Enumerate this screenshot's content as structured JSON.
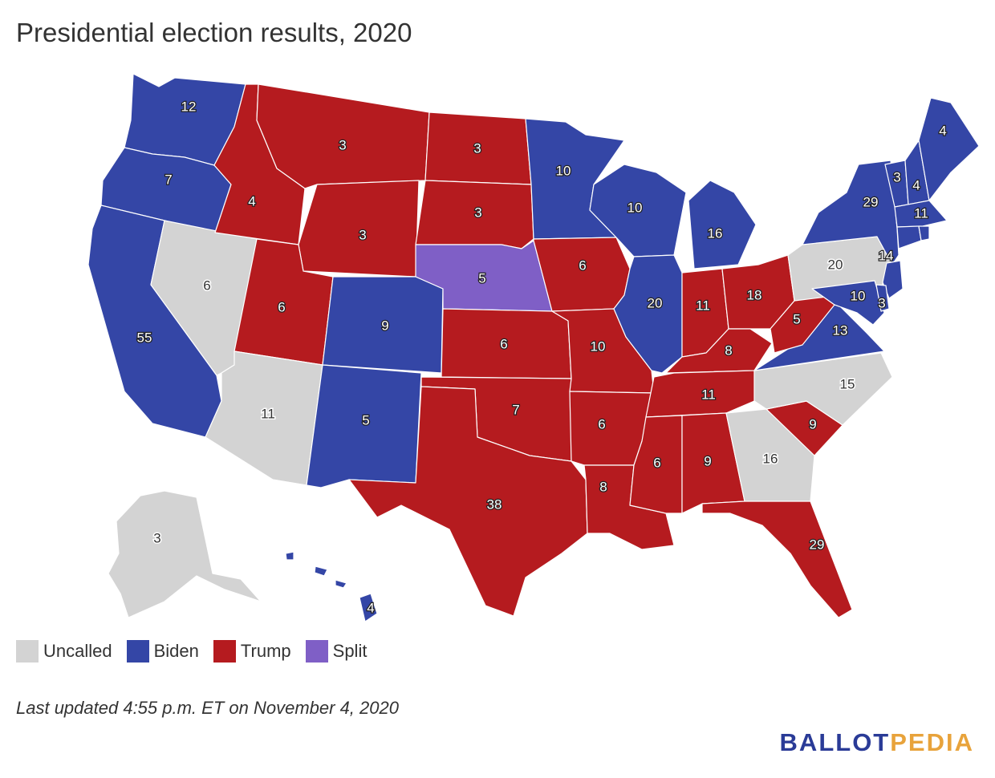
{
  "title": "Presidential election results, 2020",
  "colors": {
    "uncalled": "#d3d3d3",
    "biden": "#3446a6",
    "trump": "#b51b1f",
    "split": "#7f5fc6"
  },
  "legend": [
    {
      "key": "uncalled",
      "label": "Uncalled"
    },
    {
      "key": "biden",
      "label": "Biden"
    },
    {
      "key": "trump",
      "label": "Trump"
    },
    {
      "key": "split",
      "label": "Split"
    }
  ],
  "states": [
    {
      "name": "WA",
      "status": "biden",
      "votes": "12"
    },
    {
      "name": "OR",
      "status": "biden",
      "votes": "7"
    },
    {
      "name": "CA",
      "status": "biden",
      "votes": "55"
    },
    {
      "name": "NV",
      "status": "uncalled",
      "votes": "6"
    },
    {
      "name": "ID",
      "status": "trump",
      "votes": "4"
    },
    {
      "name": "MT",
      "status": "trump",
      "votes": "3"
    },
    {
      "name": "WY",
      "status": "trump",
      "votes": "3"
    },
    {
      "name": "UT",
      "status": "trump",
      "votes": "6"
    },
    {
      "name": "AZ",
      "status": "uncalled",
      "votes": "11"
    },
    {
      "name": "CO",
      "status": "biden",
      "votes": "9"
    },
    {
      "name": "NM",
      "status": "biden",
      "votes": "5"
    },
    {
      "name": "ND",
      "status": "trump",
      "votes": "3"
    },
    {
      "name": "SD",
      "status": "trump",
      "votes": "3"
    },
    {
      "name": "NE",
      "status": "split",
      "votes": "5"
    },
    {
      "name": "KS",
      "status": "trump",
      "votes": "6"
    },
    {
      "name": "OK",
      "status": "trump",
      "votes": "7"
    },
    {
      "name": "TX",
      "status": "trump",
      "votes": "38"
    },
    {
      "name": "MN",
      "status": "biden",
      "votes": "10"
    },
    {
      "name": "IA",
      "status": "trump",
      "votes": "6"
    },
    {
      "name": "MO",
      "status": "trump",
      "votes": "10"
    },
    {
      "name": "AR",
      "status": "trump",
      "votes": "6"
    },
    {
      "name": "LA",
      "status": "trump",
      "votes": "8"
    },
    {
      "name": "WI",
      "status": "biden",
      "votes": "10"
    },
    {
      "name": "IL",
      "status": "biden",
      "votes": "20"
    },
    {
      "name": "MI",
      "status": "biden",
      "votes": "16"
    },
    {
      "name": "IN",
      "status": "trump",
      "votes": "11"
    },
    {
      "name": "OH",
      "status": "trump",
      "votes": "18"
    },
    {
      "name": "KY",
      "status": "trump",
      "votes": "8"
    },
    {
      "name": "TN",
      "status": "trump",
      "votes": "11"
    },
    {
      "name": "MS",
      "status": "trump",
      "votes": "6"
    },
    {
      "name": "AL",
      "status": "trump",
      "votes": "9"
    },
    {
      "name": "GA",
      "status": "uncalled",
      "votes": "16"
    },
    {
      "name": "FL",
      "status": "trump",
      "votes": "29"
    },
    {
      "name": "SC",
      "status": "trump",
      "votes": "9"
    },
    {
      "name": "NC",
      "status": "uncalled",
      "votes": "15"
    },
    {
      "name": "VA",
      "status": "biden",
      "votes": "13"
    },
    {
      "name": "WV",
      "status": "trump",
      "votes": "5"
    },
    {
      "name": "PA",
      "status": "uncalled",
      "votes": "20"
    },
    {
      "name": "NY",
      "status": "biden",
      "votes": "29"
    },
    {
      "name": "VT",
      "status": "biden",
      "votes": "3"
    },
    {
      "name": "NH",
      "status": "biden",
      "votes": "4"
    },
    {
      "name": "ME",
      "status": "biden",
      "votes": "4"
    },
    {
      "name": "MA",
      "status": "biden",
      "votes": "11"
    },
    {
      "name": "NJ",
      "status": "biden",
      "votes": "14"
    },
    {
      "name": "MD",
      "status": "biden",
      "votes": "10"
    },
    {
      "name": "DE",
      "status": "biden",
      "votes": "3"
    },
    {
      "name": "CT",
      "status": "biden",
      "votes": ""
    },
    {
      "name": "RI",
      "status": "biden",
      "votes": ""
    },
    {
      "name": "AK",
      "status": "uncalled",
      "votes": "3"
    },
    {
      "name": "HI",
      "status": "biden",
      "votes": "4"
    }
  ],
  "footnote": "Last updated 4:55 p.m. ET on November 4, 2020",
  "brand": {
    "ballot": "BALLOT",
    "pedia": "PEDIA",
    "ballot_color": "#2a3b97",
    "pedia_color": "#e8a33b"
  }
}
